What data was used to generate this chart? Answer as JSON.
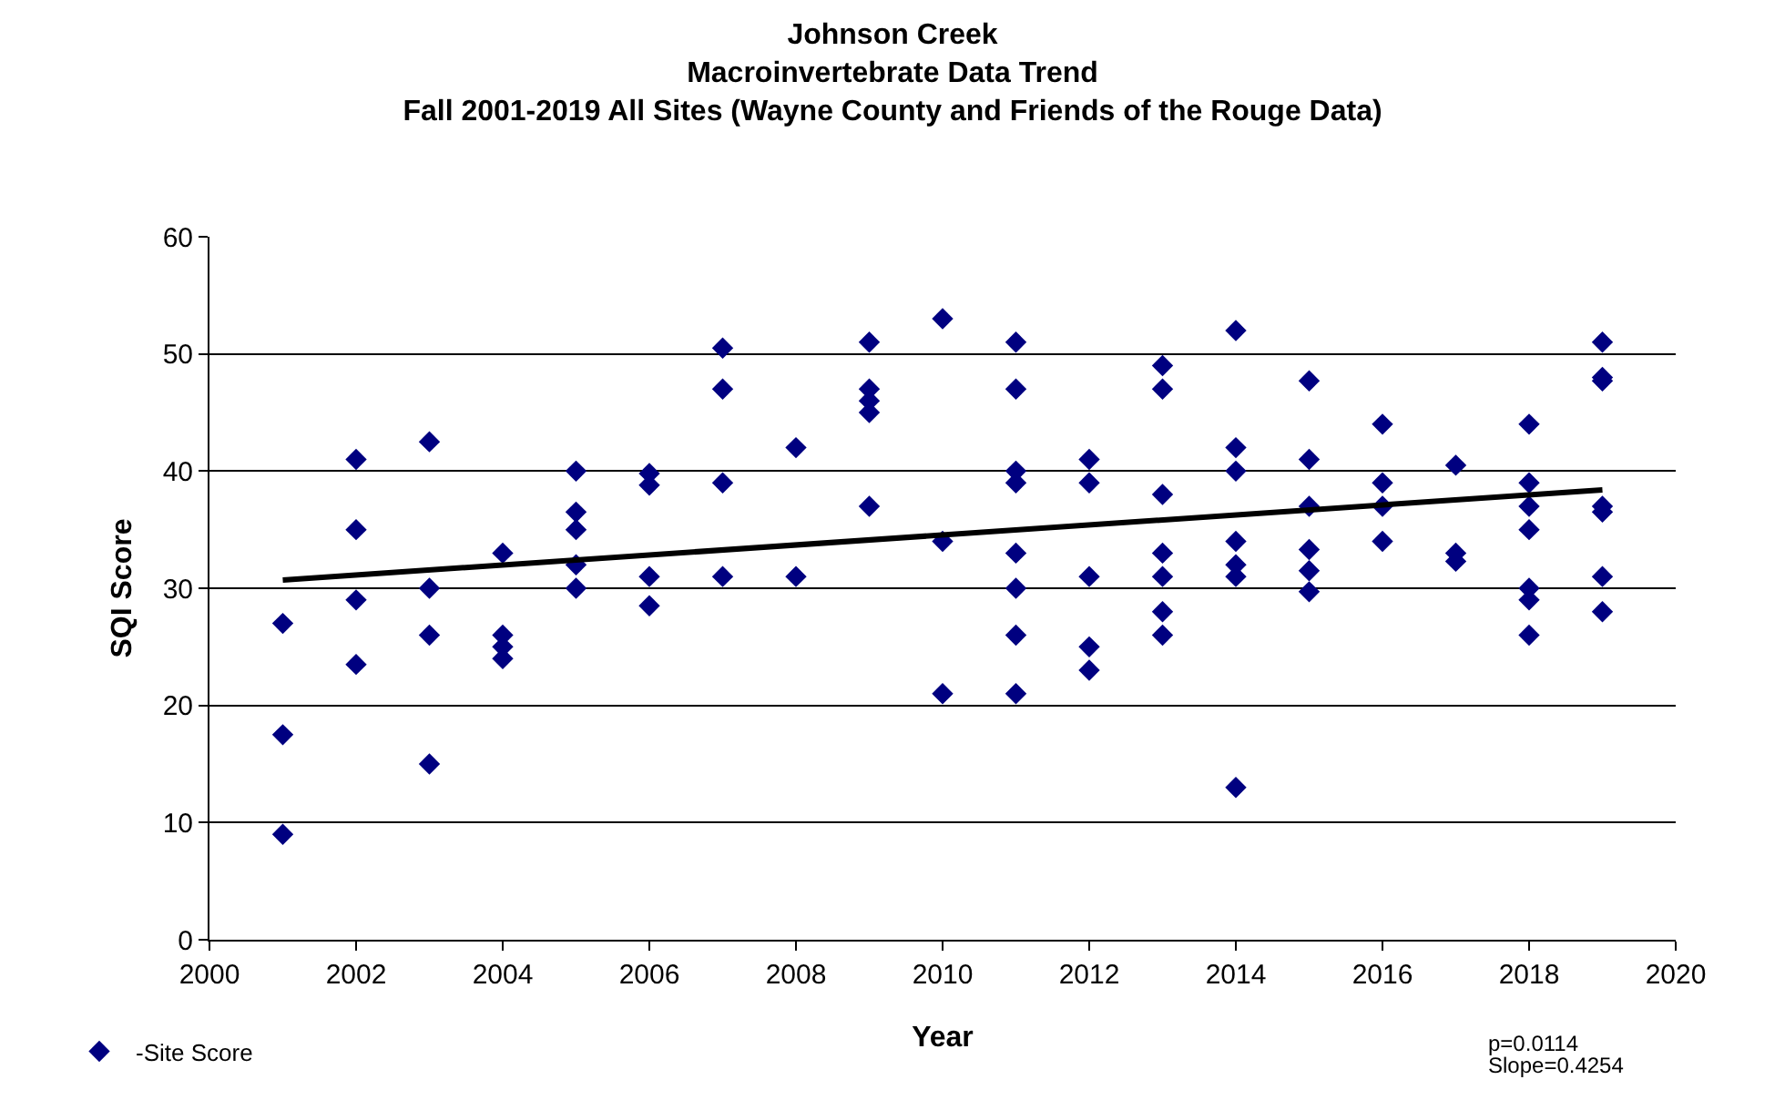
{
  "chart_data": {
    "type": "scatter",
    "title": "Johnson Creek\nMacroinvertebrate Data Trend\nFall 2001-2019 All Sites (Wayne County and Friends of the Rouge Data)",
    "xlabel": "Year",
    "ylabel": "SQI Score",
    "xlim": [
      2000,
      2020
    ],
    "xticks": [
      2000,
      2002,
      2004,
      2006,
      2008,
      2010,
      2012,
      2014,
      2016,
      2018,
      2020
    ],
    "ylim": [
      0,
      60
    ],
    "yticks": [
      0,
      10,
      20,
      30,
      40,
      50,
      60
    ],
    "grid": "y",
    "legend": "bottom left",
    "annotations": [
      "p=0.0114",
      "Slope=0.4254"
    ],
    "series": [
      {
        "name": "-Site Score",
        "color": "#000080",
        "marker": "diamond",
        "x": [
          2001,
          2001,
          2001,
          2002,
          2002,
          2002,
          2002,
          2003,
          2003,
          2003,
          2003,
          2004,
          2004,
          2004,
          2004,
          2005,
          2005,
          2005,
          2005,
          2005,
          2006,
          2006,
          2006,
          2006,
          2007,
          2007,
          2007,
          2007,
          2008,
          2008,
          2009,
          2009,
          2009,
          2009,
          2009,
          2010,
          2010,
          2010,
          2011,
          2011,
          2011,
          2011,
          2011,
          2011,
          2011,
          2011,
          2012,
          2012,
          2012,
          2012,
          2012,
          2013,
          2013,
          2013,
          2013,
          2013,
          2013,
          2013,
          2014,
          2014,
          2014,
          2014,
          2014,
          2014,
          2014,
          2015,
          2015,
          2015,
          2015,
          2015,
          2015,
          2016,
          2016,
          2016,
          2016,
          2017,
          2017,
          2017,
          2018,
          2018,
          2018,
          2018,
          2018,
          2018,
          2018,
          2019,
          2019,
          2019,
          2019,
          2019,
          2019,
          2019
        ],
        "values": [
          27,
          17.5,
          9,
          41,
          35,
          29,
          23.5,
          42.5,
          30,
          26,
          15,
          33,
          26,
          25,
          24,
          40,
          36.5,
          35,
          32,
          30,
          39.8,
          38.8,
          31,
          28.5,
          50.5,
          47,
          39,
          31,
          42,
          31,
          51,
          47,
          46,
          45,
          37,
          53,
          34,
          21,
          51,
          47,
          40,
          39,
          33,
          30,
          26,
          21,
          41,
          39,
          31,
          25,
          23,
          49,
          47,
          38,
          33,
          31,
          28,
          26,
          52,
          42,
          40,
          34,
          32,
          31,
          13,
          47.7,
          41,
          37,
          33.3,
          31.5,
          29.7,
          44,
          39,
          37,
          34,
          40.5,
          33,
          32.3,
          44,
          39,
          37,
          35,
          30,
          29,
          26,
          51,
          48,
          47.7,
          37,
          36.5,
          31,
          28
        ]
      },
      {
        "type": "line",
        "marker": "none",
        "color": "#000000",
        "x": [
          2001,
          2019
        ],
        "values": [
          30.7,
          38.4
        ]
      }
    ]
  }
}
